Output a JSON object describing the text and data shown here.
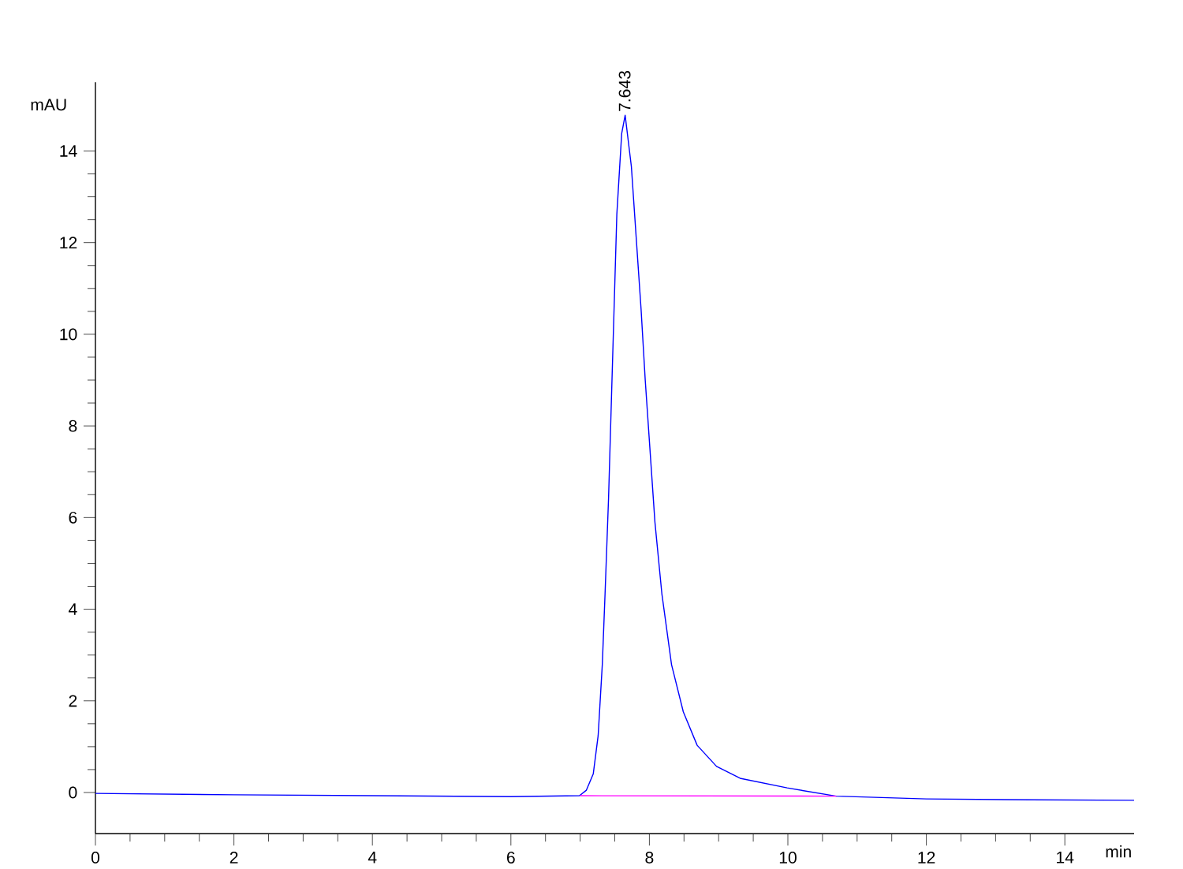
{
  "chart_data": {
    "type": "line",
    "xlabel": "min",
    "ylabel": "mAU",
    "xlim": [
      0,
      15
    ],
    "ylim": [
      -0.9,
      15.5
    ],
    "xticks": [
      0,
      2,
      4,
      6,
      8,
      10,
      12,
      14
    ],
    "yticks": [
      0,
      2,
      4,
      6,
      8,
      10,
      12,
      14
    ],
    "marker": "none",
    "line_style": "solid",
    "series": [
      {
        "color": "#0000ff",
        "x": [
          0,
          2,
          4,
          6,
          6.99,
          7.09,
          7.19,
          7.26,
          7.32,
          7.36,
          7.41,
          7.47,
          7.53,
          7.6,
          7.65,
          7.74,
          7.81,
          7.88,
          7.94,
          8.01,
          8.08,
          8.18,
          8.32,
          8.49,
          8.69,
          8.97,
          9.31,
          9.99,
          10.7,
          12,
          13.5,
          15
        ],
        "values": [
          -0.02,
          -0.05,
          -0.07,
          -0.09,
          -0.07,
          0.05,
          0.41,
          1.24,
          2.79,
          4.34,
          6.41,
          9.52,
          12.62,
          14.38,
          14.78,
          13.66,
          12.1,
          10.55,
          9.0,
          7.45,
          5.9,
          4.34,
          2.79,
          1.76,
          1.03,
          0.57,
          0.31,
          0.1,
          -0.08,
          -0.14,
          -0.16,
          -0.17
        ]
      },
      {
        "color": "#ff00ff",
        "x": [
          7.0,
          10.7
        ],
        "values": [
          -0.07,
          -0.08
        ]
      }
    ],
    "annotations": [
      {
        "text": "7.643",
        "x": 7.643,
        "y": 14.78
      }
    ]
  }
}
